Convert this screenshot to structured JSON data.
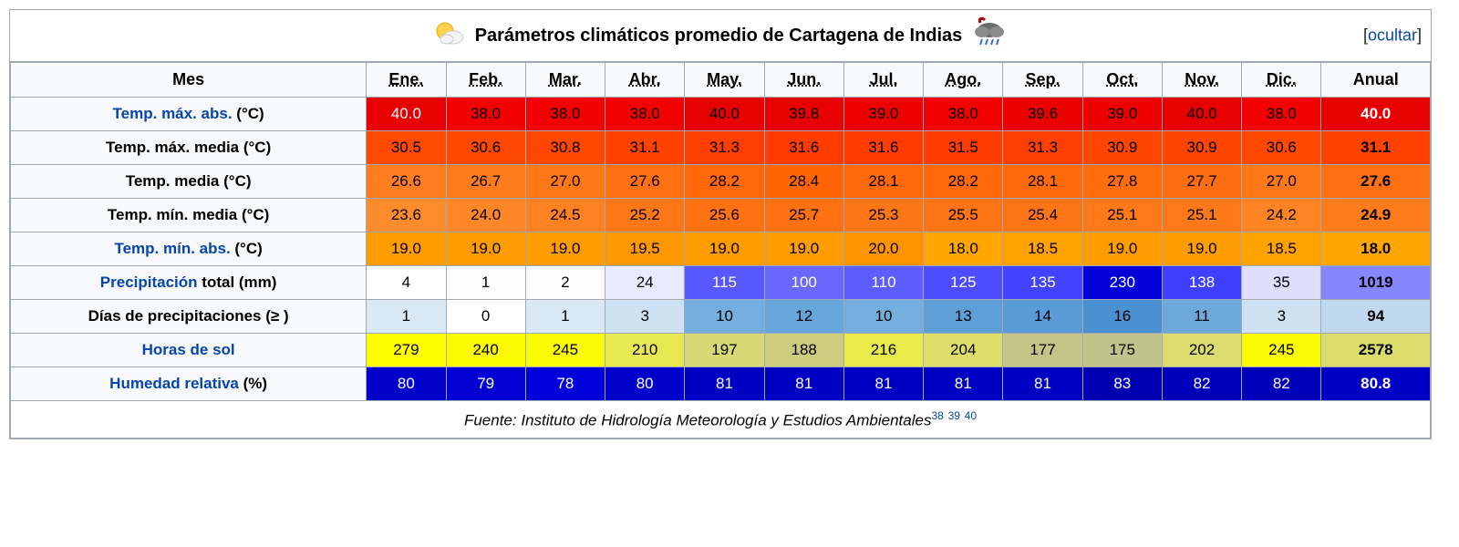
{
  "title": "Parámetros climáticos promedio de Cartagena de Indias",
  "hide_label": "ocultar",
  "header_bg": "#f8f9fa",
  "border_color": "#a2a9b1",
  "link_color": "#0645ad",
  "mes_label": "Mes",
  "months": [
    "Ene.",
    "Feb.",
    "Mar.",
    "Abr.",
    "May.",
    "Jun.",
    "Jul.",
    "Ago.",
    "Sep.",
    "Oct.",
    "Nov.",
    "Dic."
  ],
  "annual_label": "Anual",
  "rows": [
    {
      "label_parts": [
        {
          "text": "Temp. máx. abs.",
          "link": true
        },
        {
          "text": " (°C)",
          "link": false
        }
      ],
      "values": [
        "40.0",
        "38.0",
        "38.0",
        "38.0",
        "40.0",
        "39.8",
        "39.0",
        "38.0",
        "39.6",
        "39.0",
        "40.0",
        "38.0"
      ],
      "annual": "40.0",
      "bg": [
        "#e60000",
        "#f30000",
        "#f30000",
        "#f30000",
        "#e60000",
        "#e80000",
        "#ed0000",
        "#f30000",
        "#ea0000",
        "#ed0000",
        "#e60000",
        "#f30000"
      ],
      "tc": [
        "#ffffff",
        "#000000",
        "#000000",
        "#000000",
        "#000000",
        "#000000",
        "#000000",
        "#000000",
        "#000000",
        "#000000",
        "#000000",
        "#000000"
      ],
      "annual_bg": "#e60000",
      "annual_tc": "#ffffff"
    },
    {
      "label_parts": [
        {
          "text": "Temp. máx. media (°C)",
          "link": false
        }
      ],
      "values": [
        "30.5",
        "30.6",
        "30.8",
        "31.1",
        "31.3",
        "31.6",
        "31.6",
        "31.5",
        "31.3",
        "30.9",
        "30.9",
        "30.6"
      ],
      "annual": "31.1",
      "bg": [
        "#ff4a00",
        "#ff4900",
        "#ff4600",
        "#ff4200",
        "#ff3f00",
        "#ff3b00",
        "#ff3b00",
        "#ff3d00",
        "#ff3f00",
        "#ff4500",
        "#ff4500",
        "#ff4900"
      ],
      "tc": [
        "#000000",
        "#000000",
        "#000000",
        "#000000",
        "#000000",
        "#000000",
        "#000000",
        "#000000",
        "#000000",
        "#000000",
        "#000000",
        "#000000"
      ],
      "annual_bg": "#ff4200",
      "annual_tc": "#000000"
    },
    {
      "label_parts": [
        {
          "text": "Temp. media (°C)",
          "link": false
        }
      ],
      "values": [
        "26.6",
        "26.7",
        "27.0",
        "27.6",
        "28.2",
        "28.4",
        "28.1",
        "28.2",
        "28.1",
        "27.8",
        "27.7",
        "27.0"
      ],
      "annual": "27.6",
      "bg": [
        "#ff7e1f",
        "#ff7c1d",
        "#ff7818",
        "#ff7010",
        "#ff6808",
        "#ff6505",
        "#ff6909",
        "#ff6808",
        "#ff6909",
        "#ff6d0d",
        "#ff6e0e",
        "#ff7818"
      ],
      "tc": [
        "#000000",
        "#000000",
        "#000000",
        "#000000",
        "#000000",
        "#000000",
        "#000000",
        "#000000",
        "#000000",
        "#000000",
        "#000000",
        "#000000"
      ],
      "annual_bg": "#ff7010",
      "annual_tc": "#000000"
    },
    {
      "label_parts": [
        {
          "text": "Temp. mín. media (°C)",
          "link": false
        }
      ],
      "values": [
        "23.6",
        "24.0",
        "24.5",
        "25.2",
        "25.6",
        "25.7",
        "25.3",
        "25.5",
        "25.4",
        "25.1",
        "25.1",
        "24.2"
      ],
      "annual": "24.9",
      "bg": [
        "#ff8c2c",
        "#ff8727",
        "#ff8121",
        "#ff7818",
        "#ff7212",
        "#ff7111",
        "#ff7616",
        "#ff7414",
        "#ff7515",
        "#ff7919",
        "#ff7919",
        "#ff8424"
      ],
      "tc": [
        "#000000",
        "#000000",
        "#000000",
        "#000000",
        "#000000",
        "#000000",
        "#000000",
        "#000000",
        "#000000",
        "#000000",
        "#000000",
        "#000000"
      ],
      "annual_bg": "#ff7c1c",
      "annual_tc": "#000000"
    },
    {
      "label_parts": [
        {
          "text": "Temp. mín. abs.",
          "link": true
        },
        {
          "text": " (°C)",
          "link": false
        }
      ],
      "values": [
        "19.0",
        "19.0",
        "19.0",
        "19.5",
        "19.0",
        "19.0",
        "20.0",
        "18.0",
        "18.5",
        "19.0",
        "19.0",
        "18.5"
      ],
      "annual": "18.0",
      "bg": [
        "#ff9d00",
        "#ff9d00",
        "#ff9d00",
        "#ff9800",
        "#ff9d00",
        "#ff9d00",
        "#ff9300",
        "#ffa700",
        "#ffa200",
        "#ff9d00",
        "#ff9d00",
        "#ffa200"
      ],
      "tc": [
        "#000000",
        "#000000",
        "#000000",
        "#000000",
        "#000000",
        "#000000",
        "#000000",
        "#000000",
        "#000000",
        "#000000",
        "#000000",
        "#000000"
      ],
      "annual_bg": "#ffa700",
      "annual_tc": "#000000"
    },
    {
      "label_parts": [
        {
          "text": "Precipitación",
          "link": true
        },
        {
          "text": " total (mm)",
          "link": false
        }
      ],
      "values": [
        "4",
        "1",
        "2",
        "24",
        "115",
        "100",
        "110",
        "125",
        "135",
        "230",
        "138",
        "35"
      ],
      "annual": "1019",
      "bg": [
        "#ffffff",
        "#fdfdff",
        "#fefeff",
        "#e9e9ff",
        "#5858ff",
        "#6868ff",
        "#5d5dff",
        "#4d4dff",
        "#4242ff",
        "#0000d6",
        "#3f3fff",
        "#dedeff"
      ],
      "tc": [
        "#000000",
        "#000000",
        "#000000",
        "#000000",
        "#ffffff",
        "#ffffff",
        "#ffffff",
        "#ffffff",
        "#ffffff",
        "#ffffff",
        "#ffffff",
        "#000000"
      ],
      "annual_bg": "#8686ff",
      "annual_tc": "#000000"
    },
    {
      "label_parts": [
        {
          "text": "Días de precipitaciones (≥ )",
          "link": false
        }
      ],
      "values": [
        "1",
        "0",
        "1",
        "3",
        "10",
        "12",
        "10",
        "13",
        "14",
        "16",
        "11",
        "3"
      ],
      "annual": "94",
      "bg": [
        "#d9e8f5",
        "#ffffff",
        "#d9e8f5",
        "#cde1f2",
        "#74aedf",
        "#66a6db",
        "#74aedf",
        "#5f9fd8",
        "#589bd6",
        "#4a91d2",
        "#6da8dc",
        "#cde1f2"
      ],
      "tc": [
        "#000000",
        "#000000",
        "#000000",
        "#000000",
        "#000000",
        "#000000",
        "#000000",
        "#000000",
        "#000000",
        "#000000",
        "#000000",
        "#000000"
      ],
      "annual_bg": "#c1d9ee",
      "annual_tc": "#000000"
    },
    {
      "label_parts": [
        {
          "text": "Horas de sol",
          "link": true
        }
      ],
      "values": [
        "279",
        "240",
        "245",
        "210",
        "197",
        "188",
        "216",
        "204",
        "177",
        "175",
        "202",
        "245"
      ],
      "annual": "2578",
      "bg": [
        "#ffff00",
        "#fafa00",
        "#fbfb04",
        "#e8e853",
        "#d8d874",
        "#cccc7e",
        "#eaea4a",
        "#dddd68",
        "#c4c488",
        "#c2c28c",
        "#dbdb6e",
        "#fbfb04"
      ],
      "tc": [
        "#000000",
        "#000000",
        "#000000",
        "#000000",
        "#000000",
        "#000000",
        "#000000",
        "#000000",
        "#000000",
        "#000000",
        "#000000",
        "#000000"
      ],
      "annual_bg": "#dcdc6a",
      "annual_tc": "#000000"
    },
    {
      "label_parts": [
        {
          "text": "Humedad relativa",
          "link": true
        },
        {
          "text": " (%)",
          "link": false
        }
      ],
      "values": [
        "80",
        "79",
        "78",
        "80",
        "81",
        "81",
        "81",
        "81",
        "81",
        "83",
        "82",
        "82"
      ],
      "annual": "80.8",
      "bg": [
        "#0000ca",
        "#0000d2",
        "#0000da",
        "#0000ca",
        "#0000c2",
        "#0000c2",
        "#0000c2",
        "#0000c2",
        "#0000c2",
        "#0000b2",
        "#0000ba",
        "#0000ba"
      ],
      "tc": [
        "#ffffff",
        "#ffffff",
        "#ffffff",
        "#ffffff",
        "#ffffff",
        "#ffffff",
        "#ffffff",
        "#ffffff",
        "#ffffff",
        "#ffffff",
        "#ffffff",
        "#ffffff"
      ],
      "annual_bg": "#0000c4",
      "annual_tc": "#ffffff"
    }
  ],
  "source_prefix": "Fuente: ",
  "source_text": "Instituto de Hidrología Meteorología y Estudios Ambientales",
  "source_refs": [
    "38",
    "39",
    "40"
  ]
}
